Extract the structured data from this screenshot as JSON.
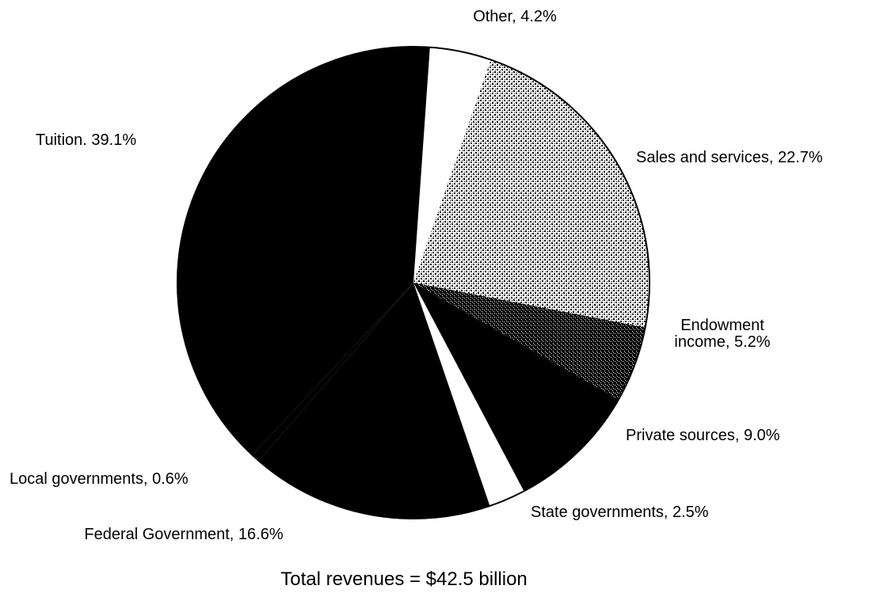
{
  "chart_data": {
    "type": "pie",
    "caption": "Total revenues = $42.5 billion",
    "start_angle_deg": 86,
    "direction": "clockwise",
    "slices": [
      {
        "label": "Other, 4.2%",
        "value": 4.2,
        "color": "#ffffff"
      },
      {
        "label": "Sales and services, 22.7%",
        "value": 22.7,
        "color": "#0a0a0a"
      },
      {
        "label": "Endowment income, 5.2%",
        "lines": [
          "Endowment",
          "income, 5.2%"
        ],
        "value": 5.2,
        "color": "#000000"
      },
      {
        "label": "Private sources, 9.0%",
        "value": 9.0,
        "color": "#000000"
      },
      {
        "label": "State governments, 2.5%",
        "value": 2.5,
        "color": "#ffffff"
      },
      {
        "label": "Federal Government, 16.6%",
        "value": 16.6,
        "color": "#000000"
      },
      {
        "label": "Local governments, 0.6%",
        "value": 0.6,
        "color": "#000000"
      },
      {
        "label": "Tuition. 39.1%",
        "value": 39.1,
        "color": "#000000"
      }
    ],
    "colors": {
      "outline": "#000000",
      "stipple": "#ffffff",
      "background": "#ffffff"
    }
  }
}
